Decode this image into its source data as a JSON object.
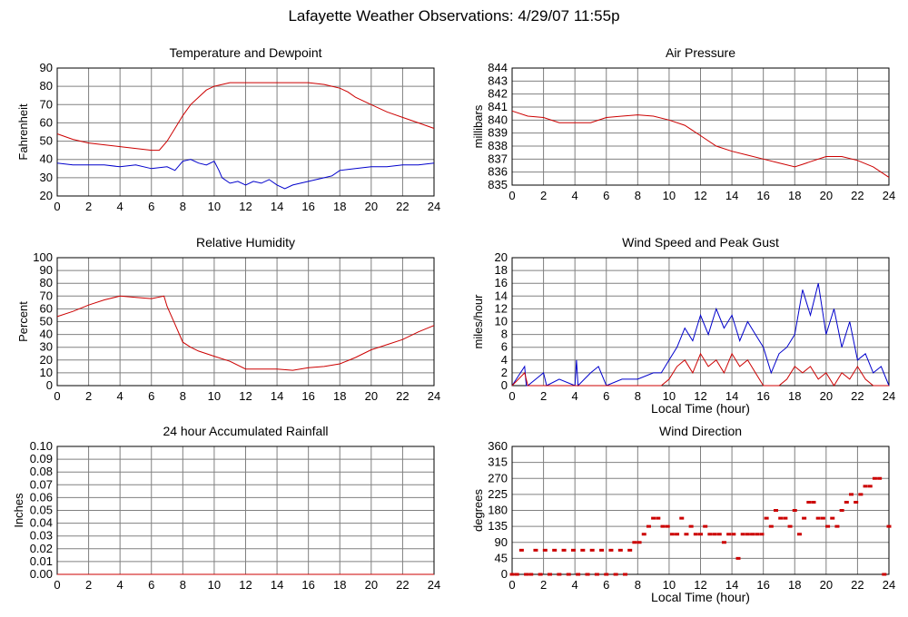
{
  "page_title": "Lafayette Weather Observations: 4/29/07 11:55p",
  "colors": {
    "red": "#cc0000",
    "blue": "#0000cc",
    "grid": "#808080"
  },
  "chart_data": [
    {
      "id": "temp",
      "type": "line",
      "title": "Temperature and Dewpoint",
      "xlabel": "",
      "ylabel": "Fahrenheit",
      "xlim": [
        0,
        24
      ],
      "ylim": [
        20,
        90
      ],
      "xticks": [
        0,
        2,
        4,
        6,
        8,
        10,
        12,
        14,
        16,
        18,
        20,
        22,
        24
      ],
      "yticks": [
        20,
        30,
        40,
        50,
        60,
        70,
        80,
        90
      ],
      "grid": true,
      "series": [
        {
          "color": "#cc0000",
          "x": [
            0,
            1,
            2,
            3,
            4,
            5,
            6,
            6.5,
            7,
            7.5,
            8,
            8.5,
            9,
            9.5,
            10,
            10.5,
            11,
            12,
            13,
            14,
            15,
            16,
            17,
            17.5,
            18,
            18.5,
            19,
            20,
            21,
            22,
            23,
            24
          ],
          "y": [
            54,
            51,
            49,
            48,
            47,
            46,
            45,
            45,
            50,
            57,
            64,
            70,
            74,
            78,
            80,
            81,
            82,
            82,
            82,
            82,
            82,
            82,
            81,
            80,
            79,
            77,
            74,
            70,
            66,
            63,
            60,
            57
          ]
        },
        {
          "color": "#0000cc",
          "x": [
            0,
            1,
            2,
            3,
            4,
            5,
            6,
            7,
            7.5,
            8,
            8.5,
            9,
            9.5,
            10,
            10.3,
            10.5,
            11,
            11.5,
            12,
            12.5,
            13,
            13.5,
            14,
            14.5,
            15,
            16,
            17,
            17.5,
            18,
            19,
            20,
            21,
            22,
            23,
            24
          ],
          "y": [
            38,
            37,
            37,
            37,
            36,
            37,
            35,
            36,
            34,
            39,
            40,
            38,
            37,
            39,
            34,
            30,
            27,
            28,
            26,
            28,
            27,
            29,
            26,
            24,
            26,
            28,
            30,
            31,
            34,
            35,
            36,
            36,
            37,
            37,
            38
          ]
        }
      ]
    },
    {
      "id": "pressure",
      "type": "line",
      "title": "Air Pressure",
      "xlabel": "",
      "ylabel": "millibars",
      "xlim": [
        0,
        24
      ],
      "ylim": [
        835,
        844
      ],
      "xticks": [
        0,
        2,
        4,
        6,
        8,
        10,
        12,
        14,
        16,
        18,
        20,
        22,
        24
      ],
      "yticks": [
        835,
        836,
        837,
        838,
        839,
        840,
        841,
        842,
        843,
        844
      ],
      "grid": true,
      "series": [
        {
          "color": "#cc0000",
          "x": [
            0,
            1,
            2,
            3,
            4,
            5,
            6,
            7,
            8,
            9,
            10,
            11,
            12,
            13,
            14,
            15,
            16,
            17,
            18,
            18.5,
            19,
            20,
            21,
            22,
            23,
            24
          ],
          "y": [
            840.7,
            840.3,
            840.2,
            839.8,
            839.8,
            839.8,
            840.2,
            840.3,
            840.4,
            840.3,
            840.0,
            839.6,
            838.8,
            838.0,
            837.6,
            837.3,
            837.0,
            836.7,
            836.4,
            836.6,
            836.8,
            837.2,
            837.2,
            836.9,
            836.4,
            835.6
          ]
        }
      ]
    },
    {
      "id": "humidity",
      "type": "line",
      "title": "Relative Humidity",
      "xlabel": "",
      "ylabel": "Percent",
      "xlim": [
        0,
        24
      ],
      "ylim": [
        0,
        100
      ],
      "xticks": [
        0,
        2,
        4,
        6,
        8,
        10,
        12,
        14,
        16,
        18,
        20,
        22,
        24
      ],
      "yticks": [
        0,
        10,
        20,
        30,
        40,
        50,
        60,
        70,
        80,
        90,
        100
      ],
      "grid": true,
      "series": [
        {
          "color": "#cc0000",
          "x": [
            0,
            1,
            2,
            3,
            4,
            5,
            6,
            6.8,
            7,
            7.5,
            8,
            8.5,
            9,
            10,
            11,
            12,
            13,
            14,
            15,
            16,
            17,
            18,
            19,
            20,
            21,
            22,
            23,
            24
          ],
          "y": [
            54,
            58,
            63,
            67,
            70,
            69,
            68,
            70,
            62,
            48,
            34,
            30,
            27,
            23,
            19,
            13,
            13,
            13,
            12,
            14,
            15,
            17,
            22,
            28,
            32,
            36,
            42,
            47
          ]
        }
      ]
    },
    {
      "id": "wind",
      "type": "line",
      "title": "Wind Speed and Peak Gust",
      "xlabel": "Local Time (hour)",
      "ylabel": "miles/hour",
      "xlim": [
        0,
        24
      ],
      "ylim": [
        0,
        20
      ],
      "xticks": [
        0,
        2,
        4,
        6,
        8,
        10,
        12,
        14,
        16,
        18,
        20,
        22,
        24
      ],
      "yticks": [
        0,
        2,
        4,
        6,
        8,
        10,
        12,
        14,
        16,
        18,
        20
      ],
      "grid": true,
      "series": [
        {
          "color": "#0000cc",
          "x": [
            0,
            0.8,
            0.9,
            1,
            2,
            2.2,
            3,
            4,
            4.1,
            4.2,
            5,
            5.5,
            6,
            7,
            8,
            9,
            9.5,
            10,
            10.5,
            11,
            11.5,
            12,
            12.5,
            13,
            13.5,
            14,
            14.5,
            15,
            15.5,
            16,
            16.5,
            17,
            17.5,
            18,
            18.5,
            19,
            19.5,
            20,
            20.5,
            21,
            21.5,
            22,
            22.5,
            23,
            23.5,
            24
          ],
          "y": [
            0,
            3,
            0,
            0,
            2,
            0,
            1,
            0,
            4,
            0,
            2,
            3,
            0,
            1,
            1,
            2,
            2,
            4,
            6,
            9,
            7,
            11,
            8,
            12,
            9,
            11,
            7,
            10,
            8,
            6,
            2,
            5,
            6,
            8,
            15,
            11,
            16,
            8,
            12,
            6,
            10,
            4,
            5,
            2,
            3,
            0
          ]
        },
        {
          "color": "#cc0000",
          "x": [
            0,
            0.8,
            1,
            9,
            9.5,
            10,
            10.5,
            11,
            11.5,
            12,
            12.5,
            13,
            13.5,
            14,
            14.5,
            15,
            15.5,
            16,
            16.5,
            17,
            17.5,
            18,
            18.5,
            19,
            19.5,
            20,
            20.5,
            21,
            21.5,
            22,
            22.5,
            23,
            24
          ],
          "y": [
            0,
            2,
            0,
            0,
            0,
            1,
            3,
            4,
            2,
            5,
            3,
            4,
            2,
            5,
            3,
            4,
            2,
            0,
            0,
            0,
            1,
            3,
            2,
            3,
            1,
            2,
            0,
            2,
            1,
            3,
            1,
            0,
            0
          ]
        }
      ]
    },
    {
      "id": "rain",
      "type": "line",
      "title": "24 hour Accumulated Rainfall",
      "xlabel": "",
      "ylabel": "Inches",
      "xlim": [
        0,
        24
      ],
      "ylim": [
        0,
        0.1
      ],
      "xticks": [
        0,
        2,
        4,
        6,
        8,
        10,
        12,
        14,
        16,
        18,
        20,
        22,
        24
      ],
      "yticks": [
        "0.00",
        "0.01",
        "0.02",
        "0.03",
        "0.04",
        "0.05",
        "0.06",
        "0.07",
        "0.08",
        "0.09",
        "0.10"
      ],
      "grid": true,
      "series": [
        {
          "color": "#cc0000",
          "x": [
            0,
            24
          ],
          "y": [
            0,
            0
          ]
        }
      ]
    },
    {
      "id": "direction",
      "type": "scatter",
      "title": "Wind Direction",
      "xlabel": "Local Time (hour)",
      "ylabel": "degrees",
      "xlim": [
        0,
        24
      ],
      "ylim": [
        0,
        360
      ],
      "xticks": [
        0,
        2,
        4,
        6,
        8,
        10,
        12,
        14,
        16,
        18,
        20,
        22,
        24
      ],
      "yticks": [
        0,
        45,
        90,
        135,
        180,
        225,
        270,
        315,
        360
      ],
      "grid": true,
      "series": [
        {
          "color": "#cc0000",
          "x": [
            0,
            0.3,
            0.6,
            0.9,
            1.2,
            1.5,
            1.8,
            2.1,
            2.4,
            2.7,
            3,
            3.3,
            3.6,
            3.9,
            4.2,
            4.5,
            4.8,
            5.1,
            5.4,
            5.7,
            6,
            6.3,
            6.6,
            6.9,
            7.2,
            7.5,
            7.8,
            8.1,
            8.4,
            8.7,
            9,
            9.3,
            9.6,
            9.9,
            10.2,
            10.5,
            10.8,
            11.1,
            11.4,
            11.7,
            12,
            12.3,
            12.6,
            12.9,
            13.2,
            13.5,
            13.8,
            14.1,
            14.4,
            14.7,
            15,
            15.3,
            15.6,
            15.9,
            16.2,
            16.5,
            16.8,
            17.1,
            17.4,
            17.7,
            18,
            18.3,
            18.6,
            18.9,
            19.2,
            19.5,
            19.8,
            20.1,
            20.4,
            20.7,
            21,
            21.3,
            21.6,
            21.9,
            22.2,
            22.5,
            22.8,
            23.1,
            23.4,
            23.7,
            24
          ],
          "y": [
            0,
            0,
            68,
            0,
            0,
            68,
            0,
            68,
            0,
            68,
            0,
            68,
            0,
            68,
            0,
            68,
            0,
            68,
            0,
            68,
            0,
            68,
            0,
            68,
            0,
            68,
            90,
            90,
            113,
            135,
            158,
            158,
            135,
            135,
            113,
            113,
            158,
            113,
            135,
            113,
            113,
            135,
            113,
            113,
            113,
            90,
            113,
            113,
            45,
            113,
            113,
            113,
            113,
            113,
            158,
            135,
            180,
            158,
            158,
            135,
            180,
            113,
            158,
            203,
            203,
            158,
            158,
            135,
            158,
            135,
            180,
            203,
            225,
            203,
            225,
            248,
            248,
            270,
            270,
            0,
            135
          ]
        }
      ]
    }
  ]
}
